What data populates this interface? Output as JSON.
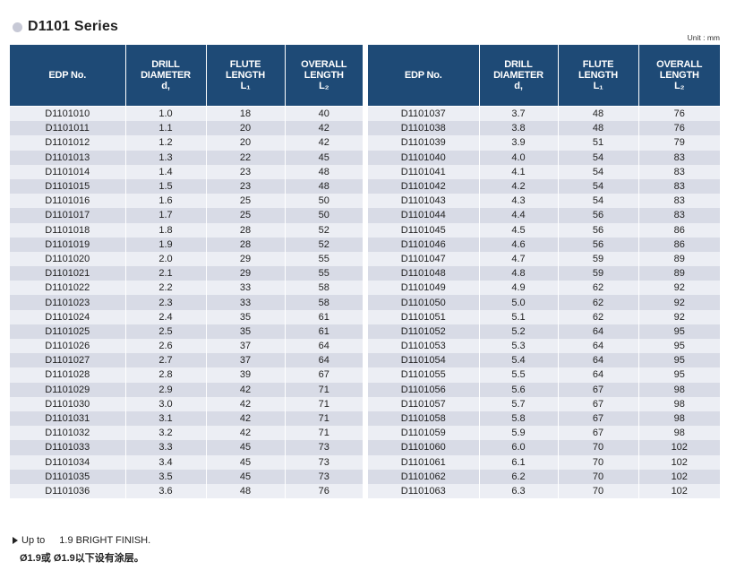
{
  "title": "D1101 Series",
  "unit": "Unit : mm",
  "headers": {
    "edp": "EDP No.",
    "diameter": [
      "DRILL",
      "DIAMETER",
      "d,"
    ],
    "flute": [
      "FLUTE",
      "LENGTH",
      "L₁"
    ],
    "overall": [
      "OVERALL",
      "LENGTH",
      "L₂"
    ]
  },
  "left_rows": [
    [
      "D1101010",
      "1.0",
      "18",
      "40"
    ],
    [
      "D1101011",
      "1.1",
      "20",
      "42"
    ],
    [
      "D1101012",
      "1.2",
      "20",
      "42"
    ],
    [
      "D1101013",
      "1.3",
      "22",
      "45"
    ],
    [
      "D1101014",
      "1.4",
      "23",
      "48"
    ],
    [
      "D1101015",
      "1.5",
      "23",
      "48"
    ],
    [
      "D1101016",
      "1.6",
      "25",
      "50"
    ],
    [
      "D1101017",
      "1.7",
      "25",
      "50"
    ],
    [
      "D1101018",
      "1.8",
      "28",
      "52"
    ],
    [
      "D1101019",
      "1.9",
      "28",
      "52"
    ],
    [
      "D1101020",
      "2.0",
      "29",
      "55"
    ],
    [
      "D1101021",
      "2.1",
      "29",
      "55"
    ],
    [
      "D1101022",
      "2.2",
      "33",
      "58"
    ],
    [
      "D1101023",
      "2.3",
      "33",
      "58"
    ],
    [
      "D1101024",
      "2.4",
      "35",
      "61"
    ],
    [
      "D1101025",
      "2.5",
      "35",
      "61"
    ],
    [
      "D1101026",
      "2.6",
      "37",
      "64"
    ],
    [
      "D1101027",
      "2.7",
      "37",
      "64"
    ],
    [
      "D1101028",
      "2.8",
      "39",
      "67"
    ],
    [
      "D1101029",
      "2.9",
      "42",
      "71"
    ],
    [
      "D1101030",
      "3.0",
      "42",
      "71"
    ],
    [
      "D1101031",
      "3.1",
      "42",
      "71"
    ],
    [
      "D1101032",
      "3.2",
      "42",
      "71"
    ],
    [
      "D1101033",
      "3.3",
      "45",
      "73"
    ],
    [
      "D1101034",
      "3.4",
      "45",
      "73"
    ],
    [
      "D1101035",
      "3.5",
      "45",
      "73"
    ],
    [
      "D1101036",
      "3.6",
      "48",
      "76"
    ]
  ],
  "right_rows": [
    [
      "D1101037",
      "3.7",
      "48",
      "76"
    ],
    [
      "D1101038",
      "3.8",
      "48",
      "76"
    ],
    [
      "D1101039",
      "3.9",
      "51",
      "79"
    ],
    [
      "D1101040",
      "4.0",
      "54",
      "83"
    ],
    [
      "D1101041",
      "4.1",
      "54",
      "83"
    ],
    [
      "D1101042",
      "4.2",
      "54",
      "83"
    ],
    [
      "D1101043",
      "4.3",
      "54",
      "83"
    ],
    [
      "D1101044",
      "4.4",
      "56",
      "83"
    ],
    [
      "D1101045",
      "4.5",
      "56",
      "86"
    ],
    [
      "D1101046",
      "4.6",
      "56",
      "86"
    ],
    [
      "D1101047",
      "4.7",
      "59",
      "89"
    ],
    [
      "D1101048",
      "4.8",
      "59",
      "89"
    ],
    [
      "D1101049",
      "4.9",
      "62",
      "92"
    ],
    [
      "D1101050",
      "5.0",
      "62",
      "92"
    ],
    [
      "D1101051",
      "5.1",
      "62",
      "92"
    ],
    [
      "D1101052",
      "5.2",
      "64",
      "95"
    ],
    [
      "D1101053",
      "5.3",
      "64",
      "95"
    ],
    [
      "D1101054",
      "5.4",
      "64",
      "95"
    ],
    [
      "D1101055",
      "5.5",
      "64",
      "95"
    ],
    [
      "D1101056",
      "5.6",
      "67",
      "98"
    ],
    [
      "D1101057",
      "5.7",
      "67",
      "98"
    ],
    [
      "D1101058",
      "5.8",
      "67",
      "98"
    ],
    [
      "D1101059",
      "5.9",
      "67",
      "98"
    ],
    [
      "D1101060",
      "6.0",
      "70",
      "102"
    ],
    [
      "D1101061",
      "6.1",
      "70",
      "102"
    ],
    [
      "D1101062",
      "6.2",
      "70",
      "102"
    ],
    [
      "D1101063",
      "6.3",
      "70",
      "102"
    ]
  ],
  "footnote": {
    "prefix": "Up to",
    "text": "1.9 BRIGHT FINISH.",
    "chinese": "Ø1.9或 Ø1.9以下设有涂层。"
  },
  "colors": {
    "header_bg": "#1e4a76",
    "row_light": "#eceef4",
    "row_dark": "#d8dbe6",
    "title_dot": "#c7c9d6"
  }
}
